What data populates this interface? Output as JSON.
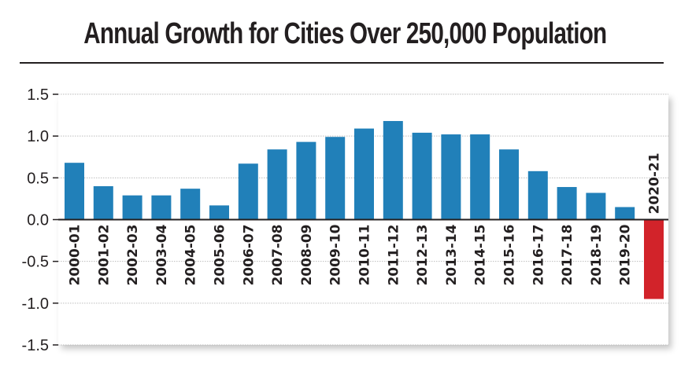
{
  "chart_data": {
    "type": "bar",
    "title": "Annual Growth for Cities Over 250,000 Population",
    "xlabel": "",
    "ylabel": "",
    "ylim": [
      -1.5,
      1.5
    ],
    "yticks": [
      1.5,
      1.0,
      0.5,
      0.0,
      -0.5,
      -1.0,
      -1.5
    ],
    "ytick_labels": [
      "1.5",
      "1.0",
      "0.5",
      "0.0",
      "-0.5",
      "-1.0",
      "-1.5"
    ],
    "grid": true,
    "legend": "none",
    "categories": [
      "2000-01",
      "2001-02",
      "2002-03",
      "2003-04",
      "2004-05",
      "2005-06",
      "2006-07",
      "2007-08",
      "2008-09",
      "2009-10",
      "2010-11",
      "2011-12",
      "2012-13",
      "2013-14",
      "2014-15",
      "2015-16",
      "2016-17",
      "2017-18",
      "2018-19",
      "2019-20",
      "2020-21"
    ],
    "values": [
      0.68,
      0.4,
      0.29,
      0.29,
      0.37,
      0.17,
      0.67,
      0.84,
      0.93,
      0.99,
      1.09,
      1.18,
      1.04,
      1.02,
      1.02,
      0.84,
      0.58,
      0.39,
      0.32,
      0.15,
      -0.95
    ],
    "colors": {
      "positive": "#2180b9",
      "negative": "#d2232a"
    }
  }
}
